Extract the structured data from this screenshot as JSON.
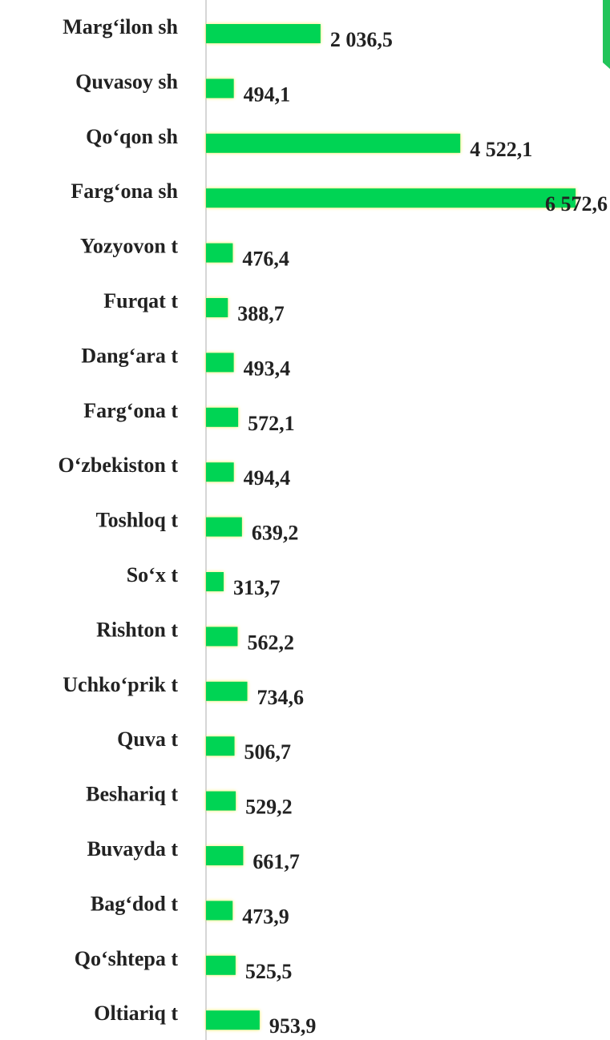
{
  "chart_data": {
    "type": "barh",
    "categories": [
      "Marg‘ilon sh",
      "Quvasoy sh",
      "Qo‘qon sh",
      "Farg‘ona sh",
      "Yozyovon t",
      "Furqat t",
      "Dang‘ara t",
      "Farg‘ona t",
      "O‘zbekiston t",
      "Toshloq t",
      "So‘x t",
      "Rishton t",
      "Uchko‘prik t",
      "Quva t",
      "Beshariq t",
      "Buvayda t",
      "Bag‘dod t",
      "Qo‘shtepa t",
      "Oltiariq t"
    ],
    "values": [
      2036.5,
      494.1,
      4522.1,
      6572.6,
      476.4,
      388.7,
      493.4,
      572.1,
      494.4,
      639.2,
      313.7,
      562.2,
      734.6,
      506.7,
      529.2,
      661.7,
      473.9,
      525.5,
      953.9
    ],
    "value_labels": [
      "2 036,5",
      "494,1",
      "4 522,1",
      "6 572,6",
      "476,4",
      "388,7",
      "493,4",
      "572,1",
      "494,4",
      "639,2",
      "313,7",
      "562,2",
      "734,6",
      "506,7",
      "529,2",
      "661,7",
      "473,9",
      "525,5",
      "953,9"
    ],
    "color": "#00d454",
    "xlim": [
      0,
      6600
    ]
  }
}
